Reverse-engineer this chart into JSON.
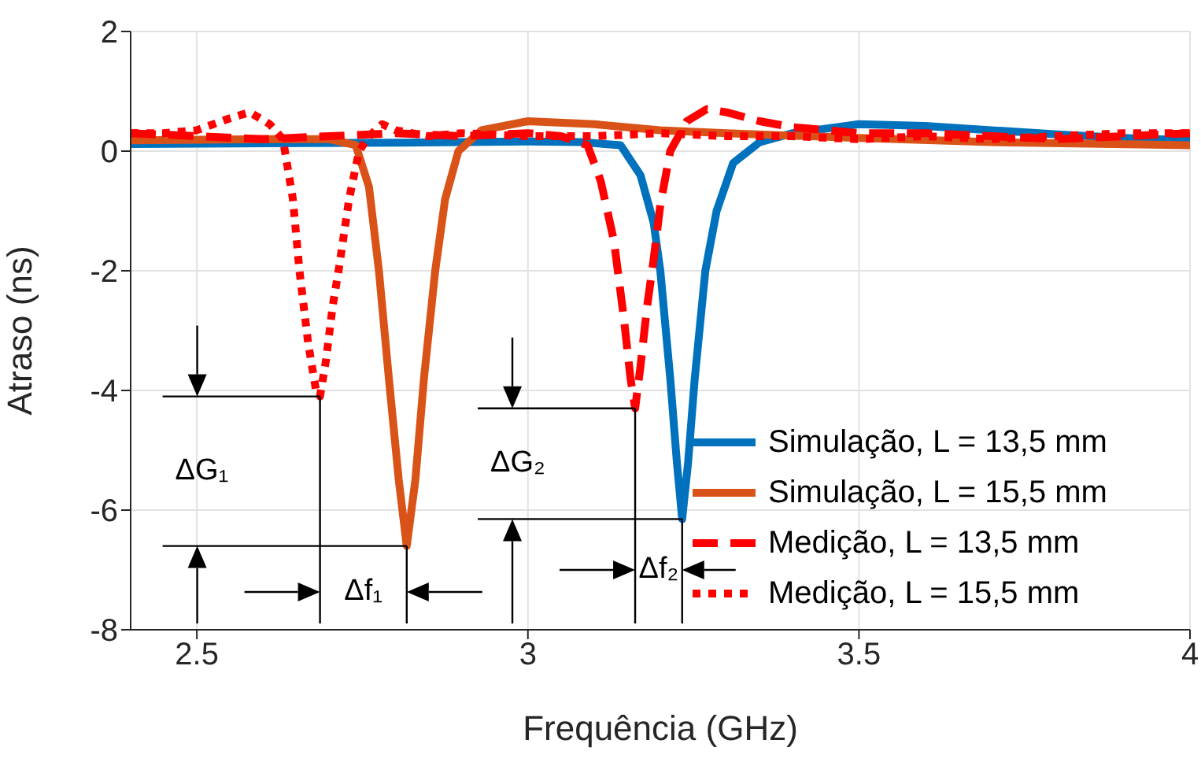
{
  "chart_data": {
    "type": "line",
    "xlabel": "Frequência (GHz)",
    "ylabel": "Atraso (ns)",
    "xlim": [
      2.4,
      4
    ],
    "xticks": [
      2.5,
      3,
      3.5,
      4
    ],
    "ylim": [
      -8,
      2
    ],
    "yticks": [
      -8,
      -6,
      -4,
      -2,
      0,
      2
    ],
    "grid": true,
    "legend": "bottom right",
    "marker": "none",
    "series": [
      {
        "name": "Simulação, L = 13,5 mm",
        "color": "#0072bd",
        "line_style": "solid",
        "x": [
          2.4,
          2.6,
          2.8,
          3.0,
          3.08,
          3.14,
          3.17,
          3.19,
          3.2,
          3.215,
          3.225,
          3.233,
          3.242,
          3.252,
          3.268,
          3.285,
          3.31,
          3.35,
          3.4,
          3.5,
          3.6,
          3.7,
          3.8,
          3.9,
          4.0
        ],
        "values": [
          0.12,
          0.13,
          0.14,
          0.16,
          0.15,
          0.1,
          -0.4,
          -1.2,
          -2.0,
          -3.8,
          -5.2,
          -6.15,
          -5.2,
          -3.8,
          -2.0,
          -1.0,
          -0.2,
          0.15,
          0.3,
          0.45,
          0.42,
          0.35,
          0.28,
          0.22,
          0.18
        ]
      },
      {
        "name": "Simulação, L = 15,5 mm",
        "color": "#d95319",
        "line_style": "solid",
        "x": [
          2.4,
          2.6,
          2.7,
          2.74,
          2.76,
          2.775,
          2.79,
          2.805,
          2.817,
          2.83,
          2.843,
          2.86,
          2.875,
          2.895,
          2.93,
          3.0,
          3.1,
          3.2,
          3.3,
          3.5,
          3.7,
          4.0
        ],
        "values": [
          0.18,
          0.2,
          0.2,
          0.1,
          -0.6,
          -2.0,
          -3.8,
          -5.5,
          -6.6,
          -5.5,
          -3.8,
          -2.0,
          -0.8,
          0.0,
          0.35,
          0.5,
          0.45,
          0.35,
          0.3,
          0.22,
          0.15,
          0.1
        ]
      },
      {
        "name": "Medição, L = 13,5 mm",
        "color": "#ff0000",
        "line_style": "dashed",
        "x": [
          2.4,
          2.5,
          2.6,
          2.7,
          2.8,
          2.9,
          3.0,
          3.05,
          3.09,
          3.11,
          3.13,
          3.145,
          3.155,
          3.162,
          3.17,
          3.18,
          3.19,
          3.2,
          3.215,
          3.24,
          3.27,
          3.3,
          3.35,
          3.4,
          3.5,
          3.6,
          3.7,
          3.8,
          3.9,
          4.0
        ],
        "values": [
          0.3,
          0.25,
          0.2,
          0.25,
          0.3,
          0.25,
          0.3,
          0.25,
          0.1,
          -0.5,
          -1.5,
          -2.8,
          -3.8,
          -4.3,
          -3.6,
          -2.6,
          -1.8,
          -0.9,
          0.0,
          0.5,
          0.7,
          0.65,
          0.5,
          0.4,
          0.3,
          0.3,
          0.25,
          0.2,
          0.25,
          0.3
        ]
      },
      {
        "name": "Medição, L = 15,5 mm",
        "color": "#ff0000",
        "line_style": "dotted",
        "x": [
          2.4,
          2.45,
          2.5,
          2.55,
          2.58,
          2.61,
          2.63,
          2.645,
          2.655,
          2.668,
          2.68,
          2.686,
          2.695,
          2.705,
          2.714,
          2.73,
          2.745,
          2.76,
          2.78,
          2.8,
          2.85,
          2.9,
          3.0,
          3.1,
          3.2,
          3.3,
          3.4,
          3.5,
          3.6,
          3.7,
          3.8,
          3.9,
          4.0
        ],
        "values": [
          0.3,
          0.3,
          0.35,
          0.55,
          0.65,
          0.45,
          0.2,
          -0.8,
          -2.0,
          -3.2,
          -4.0,
          -4.1,
          -3.5,
          -2.6,
          -2.0,
          -0.8,
          0.0,
          0.25,
          0.45,
          0.35,
          0.25,
          0.3,
          0.25,
          0.25,
          0.3,
          0.25,
          0.25,
          0.2,
          0.25,
          0.2,
          0.25,
          0.3,
          0.3
        ]
      }
    ],
    "annotations": [
      "ΔG₁",
      "ΔG₂",
      {
        "text": "Δf₁",
        "x": 2.686,
        "y": -4.1
      },
      {
        "text": "Δf₂",
        "x": 3.162,
        "y": -4.3
      }
    ]
  }
}
